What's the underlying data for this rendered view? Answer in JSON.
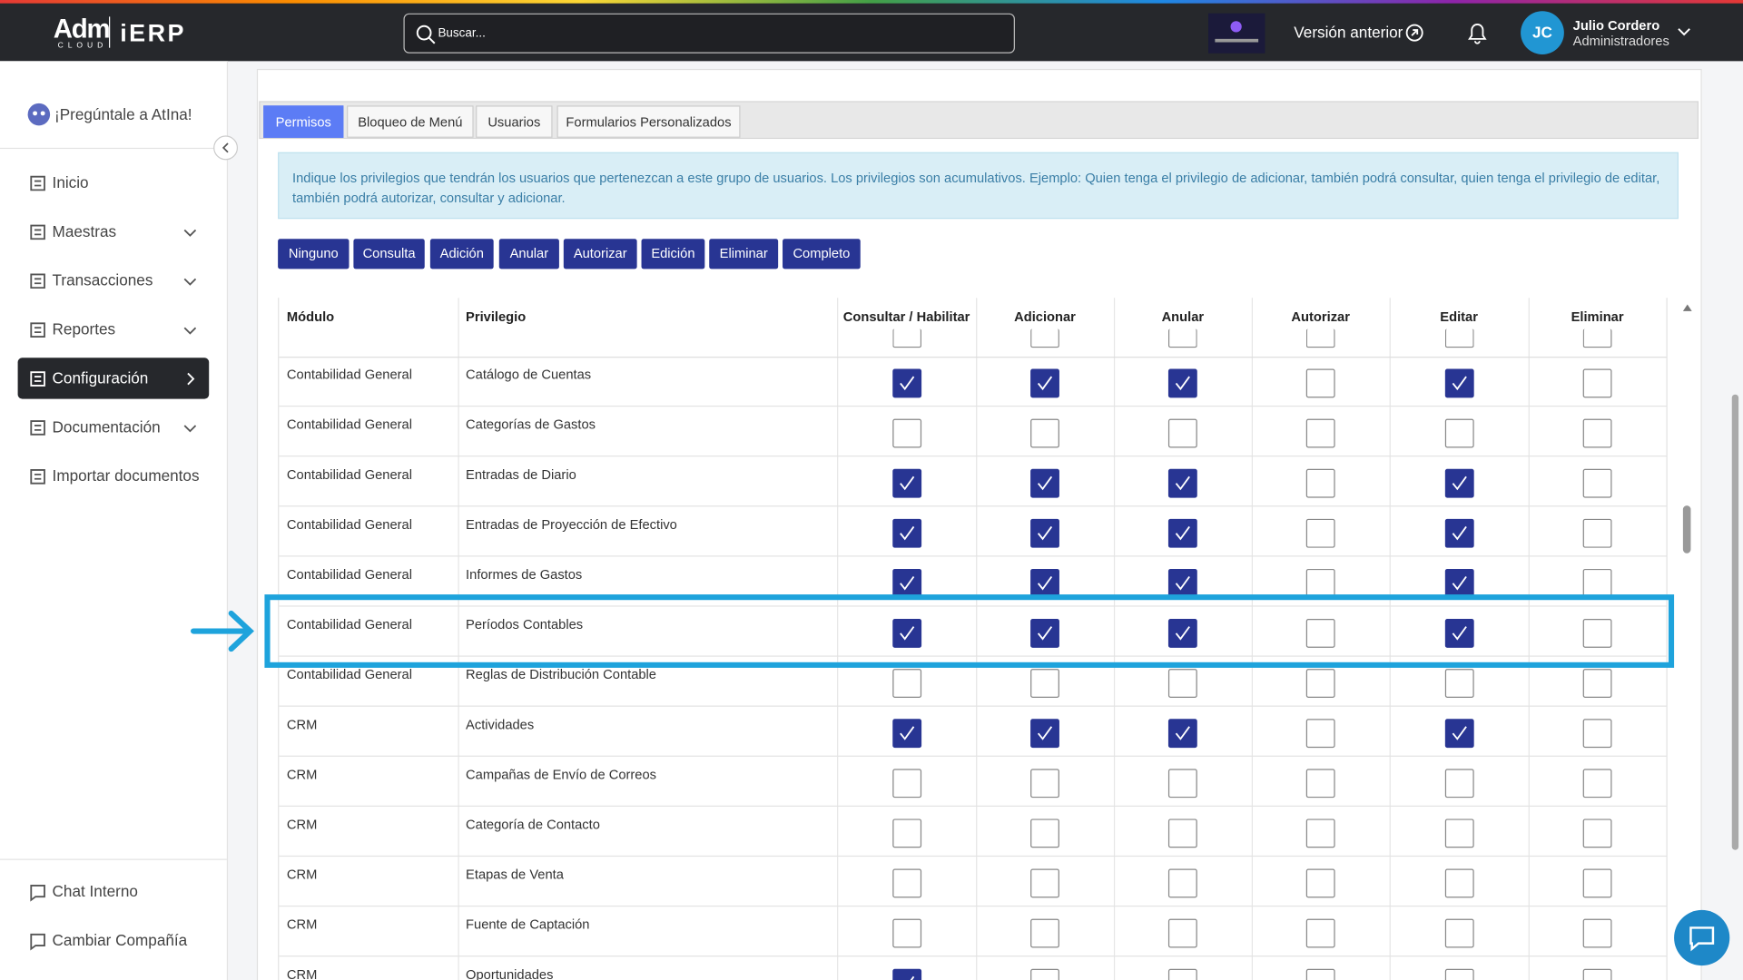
{
  "header": {
    "logo": "Adm",
    "logo_sub": "CLOUD",
    "product": "iERP",
    "search_placeholder": "Buscar...",
    "previous_version": "Versión anterior",
    "user": {
      "initials": "JC",
      "name": "Julio Cordero",
      "role": "Administradores"
    }
  },
  "sidebar": {
    "assistant": "¡Pregúntale a AtIna!",
    "menu": [
      {
        "label": "Inicio",
        "expandable": false,
        "active": false
      },
      {
        "label": "Maestras",
        "expandable": true,
        "active": false
      },
      {
        "label": "Transacciones",
        "expandable": true,
        "active": false
      },
      {
        "label": "Reportes",
        "expandable": true,
        "active": false
      },
      {
        "label": "Configuración",
        "expandable": true,
        "active": true
      },
      {
        "label": "Documentación",
        "expandable": true,
        "active": false
      },
      {
        "label": "Importar documentos",
        "expandable": false,
        "active": false
      }
    ],
    "footer": [
      "Chat Interno",
      "Cambiar Compañía"
    ]
  },
  "tabs": [
    "Permisos",
    "Bloqueo de Menú",
    "Usuarios",
    "Formularios Personalizados"
  ],
  "active_tab": 0,
  "info": "Indique los privilegios que tendrán los usuarios que pertenezcan a este grupo de usuarios. Los privilegios son acumulativos. Ejemplo: Quien tenga el privilegio de adicionar, también podrá consultar, quien tenga el privilegio de editar, también podrá autorizar, consultar y adicionar.",
  "buttons": [
    "Ninguno",
    "Consulta",
    "Adición",
    "Anular",
    "Autorizar",
    "Edición",
    "Eliminar",
    "Completo"
  ],
  "table": {
    "columns": [
      "Módulo",
      "Privilegio",
      "Consultar / Habilitar",
      "Adicionar",
      "Anular",
      "Autorizar",
      "Editar",
      "Eliminar"
    ],
    "highlighted_row": 5,
    "rows": [
      {
        "module": "Contabilidad General",
        "privilege": "Catálogo de Cuentas",
        "checks": [
          true,
          true,
          true,
          false,
          true,
          false
        ]
      },
      {
        "module": "Contabilidad General",
        "privilege": "Categorías de Gastos",
        "checks": [
          false,
          false,
          false,
          false,
          false,
          false
        ]
      },
      {
        "module": "Contabilidad General",
        "privilege": "Entradas de Diario",
        "checks": [
          true,
          true,
          true,
          false,
          true,
          false
        ]
      },
      {
        "module": "Contabilidad General",
        "privilege": "Entradas de Proyección de Efectivo",
        "checks": [
          true,
          true,
          true,
          false,
          true,
          false
        ]
      },
      {
        "module": "Contabilidad General",
        "privilege": "Informes de Gastos",
        "checks": [
          true,
          true,
          true,
          false,
          true,
          false
        ]
      },
      {
        "module": "Contabilidad General",
        "privilege": "Períodos Contables",
        "checks": [
          true,
          true,
          true,
          false,
          true,
          false
        ]
      },
      {
        "module": "Contabilidad General",
        "privilege": "Reglas de Distribución Contable",
        "checks": [
          false,
          false,
          false,
          false,
          false,
          false
        ]
      },
      {
        "module": "CRM",
        "privilege": "Actividades",
        "checks": [
          true,
          true,
          true,
          false,
          true,
          false
        ]
      },
      {
        "module": "CRM",
        "privilege": "Campañas de Envío de Correos",
        "checks": [
          false,
          false,
          false,
          false,
          false,
          false
        ]
      },
      {
        "module": "CRM",
        "privilege": "Categoría de Contacto",
        "checks": [
          false,
          false,
          false,
          false,
          false,
          false
        ]
      },
      {
        "module": "CRM",
        "privilege": "Etapas de Venta",
        "checks": [
          false,
          false,
          false,
          false,
          false,
          false
        ]
      },
      {
        "module": "CRM",
        "privilege": "Fuente de Captación",
        "checks": [
          false,
          false,
          false,
          false,
          false,
          false
        ]
      },
      {
        "module": "CRM",
        "privilege": "Oportunidades",
        "checks": [
          true,
          false,
          false,
          false,
          false,
          false
        ]
      }
    ]
  }
}
